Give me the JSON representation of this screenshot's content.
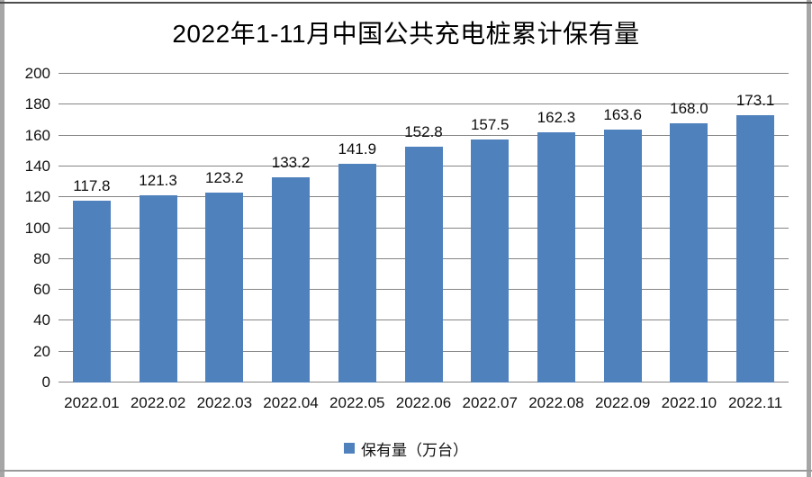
{
  "frame": {
    "background": "#ffffff",
    "top_rule_color": "#4d4d4d",
    "bottom_rule_color": "#9a9a9a",
    "side_strip_color": "#a6a6a6"
  },
  "chart_data": {
    "type": "bar",
    "title": "2022年1-11月中国公共充电桩累计保有量",
    "categories": [
      "2022.01",
      "2022.02",
      "2022.03",
      "2022.04",
      "2022.05",
      "2022.06",
      "2022.07",
      "2022.08",
      "2022.09",
      "2022.10",
      "2022.11"
    ],
    "series": [
      {
        "name": "保有量（万台）",
        "values": [
          117.8,
          121.3,
          123.2,
          133.2,
          141.9,
          152.8,
          157.5,
          162.3,
          163.6,
          168.0,
          173.1
        ],
        "value_labels": [
          "117.8",
          "121.3",
          "123.2",
          "133.2",
          "141.9",
          "152.8",
          "157.5",
          "162.3",
          "163.6",
          "168.0",
          "173.1"
        ]
      }
    ],
    "xlabel": "",
    "ylabel": "",
    "ylim": [
      0,
      200
    ],
    "yticks": [
      0,
      20,
      40,
      60,
      80,
      100,
      120,
      140,
      160,
      180,
      200
    ],
    "grid": true,
    "gridline_color": "#858585",
    "bar_color": "#4F81BD",
    "legend_position": "bottom",
    "data_labels": true
  }
}
